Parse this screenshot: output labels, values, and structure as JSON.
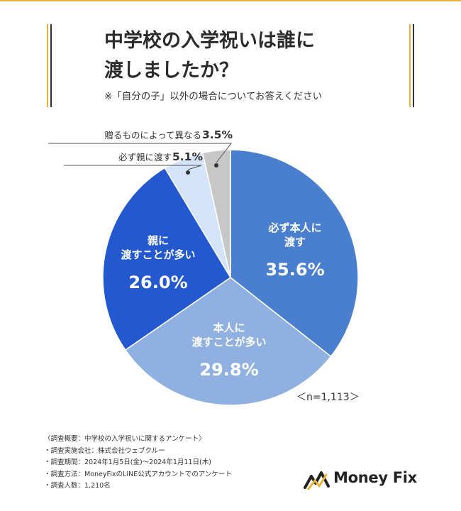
{
  "header": {
    "title_line1": "中学校の入学祝いは誰に",
    "title_line2": "渡しましたか？",
    "subtitle": "※「自分の子」以外の場合についてお答えください"
  },
  "chart_data": {
    "type": "pie",
    "slices": [
      {
        "label_lines": [
          "必ず本人に",
          "渡す"
        ],
        "value": 35.6,
        "value_text": "35.6%",
        "color": "#4a7fd0"
      },
      {
        "label_lines": [
          "本人に",
          "渡すことが多い"
        ],
        "value": 29.8,
        "value_text": "29.8%",
        "color": "#8fb0e0"
      },
      {
        "label_lines": [
          "親に",
          "渡すことが多い"
        ],
        "value": 26.0,
        "value_text": "26.0%",
        "color": "#2358cf"
      },
      {
        "label_lines": [
          "必ず親に渡す"
        ],
        "value": 5.1,
        "value_text": "5.1%",
        "color": "#d4e4fa"
      },
      {
        "label_lines": [
          "贈るものによって異なる"
        ],
        "value": 3.5,
        "value_text": "3.5%",
        "color": "#c7c7c7"
      }
    ],
    "n_note": "＜n=1,113＞"
  },
  "survey": {
    "lines": [
      "〈調査概要：中学校の入学祝いに関するアンケート〉",
      "・調査実施会社：株式会社ウェブクルー",
      "・調査期間：2024年1月5日(金)～2024年1月11日(木)",
      "・調査方法：MoneyFixのLINE公式アカウントでのアンケート",
      "・調査人数：1,210名"
    ]
  },
  "logo": {
    "text": "Money Fix",
    "accent_color": "#e9b33a"
  }
}
